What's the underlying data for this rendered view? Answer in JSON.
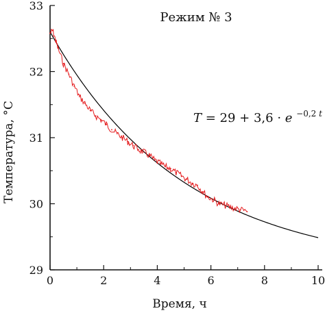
{
  "chart_data": {
    "type": "line",
    "title": "Режим № 3",
    "xlabel": "Время, ч",
    "ylabel": "Температура, °C",
    "xlim": [
      0,
      10
    ],
    "ylim": [
      29,
      33
    ],
    "xticks": [
      0,
      2,
      4,
      6,
      8,
      10
    ],
    "yticks": [
      29,
      30,
      31,
      32,
      33
    ],
    "tick_labels_x": [
      "0",
      "2",
      "4",
      "6",
      "8",
      "10"
    ],
    "tick_labels_y": [
      "29",
      "30",
      "31",
      "32",
      "33"
    ],
    "grid": false,
    "annotation": {
      "lhs": "T",
      "rhs": " = 29 + 3,6 · ",
      "exp_base": "e",
      "exponent_prefix": "−0,2",
      "exponent_var": "t"
    },
    "series": [
      {
        "kind": "measured",
        "color": "#e41a1c",
        "x": [
          0.0,
          0.1,
          0.2,
          0.3,
          0.5,
          0.7,
          0.9,
          1.1,
          1.3,
          1.5,
          1.7,
          1.9,
          2.1,
          2.3,
          2.5,
          2.7,
          2.9,
          3.1,
          3.3,
          3.5,
          3.7,
          3.9,
          4.1,
          4.3,
          4.5,
          4.7,
          4.9,
          5.1,
          5.3,
          5.5,
          5.7,
          5.9,
          6.1,
          6.3,
          6.5,
          6.7,
          6.9,
          7.1,
          7.35
        ],
        "y": [
          32.58,
          32.62,
          32.48,
          32.35,
          32.12,
          31.96,
          31.78,
          31.62,
          31.52,
          31.41,
          31.33,
          31.27,
          31.2,
          31.12,
          31.06,
          31.0,
          30.94,
          30.88,
          30.82,
          30.78,
          30.73,
          30.66,
          30.61,
          30.56,
          30.53,
          30.47,
          30.42,
          30.37,
          30.31,
          30.28,
          30.18,
          30.1,
          30.06,
          30.0,
          29.98,
          29.95,
          29.93,
          29.91,
          29.88
        ]
      },
      {
        "kind": "model",
        "color": "#000000",
        "function": "29 + 3.6 * exp(-0.2 * t)",
        "x_range": [
          0,
          10
        ]
      }
    ]
  }
}
